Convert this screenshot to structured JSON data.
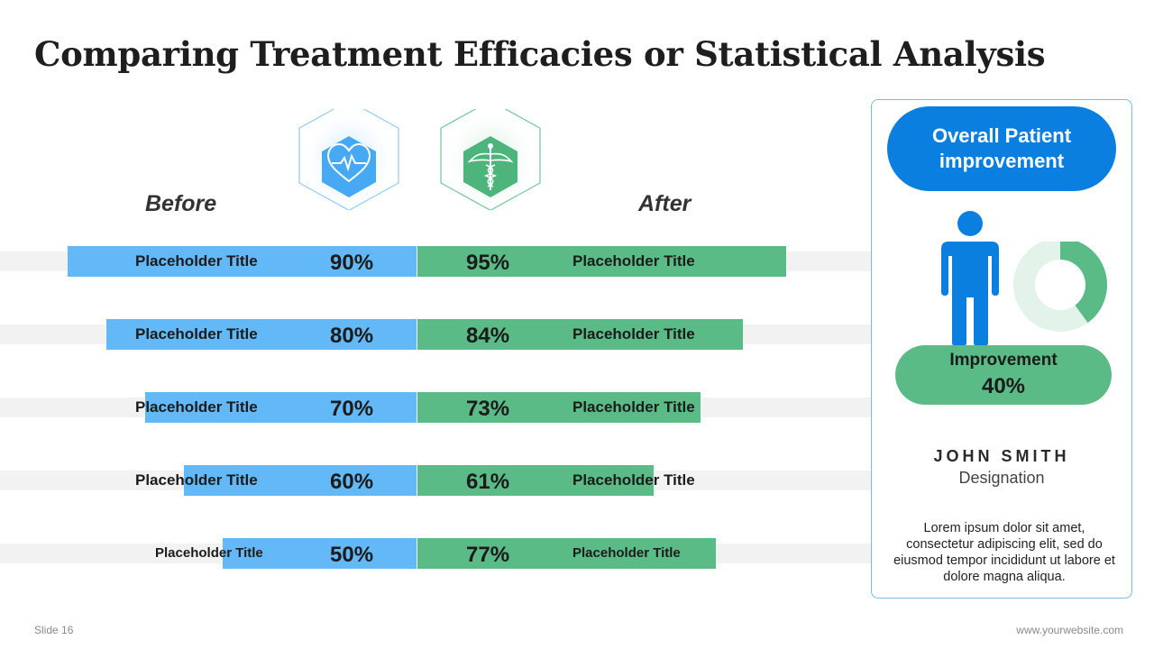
{
  "slide": {
    "title": "Comparing Treatment Efficacies or Statistical Analysis",
    "before_label": "Before",
    "after_label": "After",
    "footer_left": "Slide 16",
    "footer_right": "www.yourwebsite.com"
  },
  "icons": {
    "before": "heart-rate-icon",
    "after": "caduceus-icon"
  },
  "colors": {
    "before": "#63b8f7",
    "after": "#5bbb87",
    "accent": "#0a7fe0"
  },
  "chart_data": {
    "type": "bar",
    "categories": [
      "Placeholder Title",
      "Placeholder Title",
      "Placeholder Title",
      "Placeholder Title",
      "Placeholder Title"
    ],
    "series": [
      {
        "name": "Before",
        "values": [
          90,
          80,
          70,
          60,
          50
        ],
        "labels": [
          "90%",
          "80%",
          "70%",
          "60%",
          "50%"
        ]
      },
      {
        "name": "After",
        "values": [
          95,
          84,
          73,
          61,
          77
        ],
        "labels": [
          "95%",
          "84%",
          "73%",
          "61%",
          "77%"
        ]
      }
    ],
    "after_titles": [
      "Placeholder Title",
      "Placeholder Title",
      "Placeholder Title",
      "Placeholder Title",
      "Placeholder Title"
    ],
    "unit": "%"
  },
  "panel": {
    "heading": "Overall Patient improvement",
    "improvement_label": "Improvement",
    "improvement_value": "40%",
    "improvement_fraction": 0.4,
    "name": "JOHN SMITH",
    "designation": "Designation",
    "description": "Lorem ipsum dolor sit amet, consectetur adipiscing elit, sed do eiusmod tempor incididunt ut labore et dolore magna aliqua."
  }
}
